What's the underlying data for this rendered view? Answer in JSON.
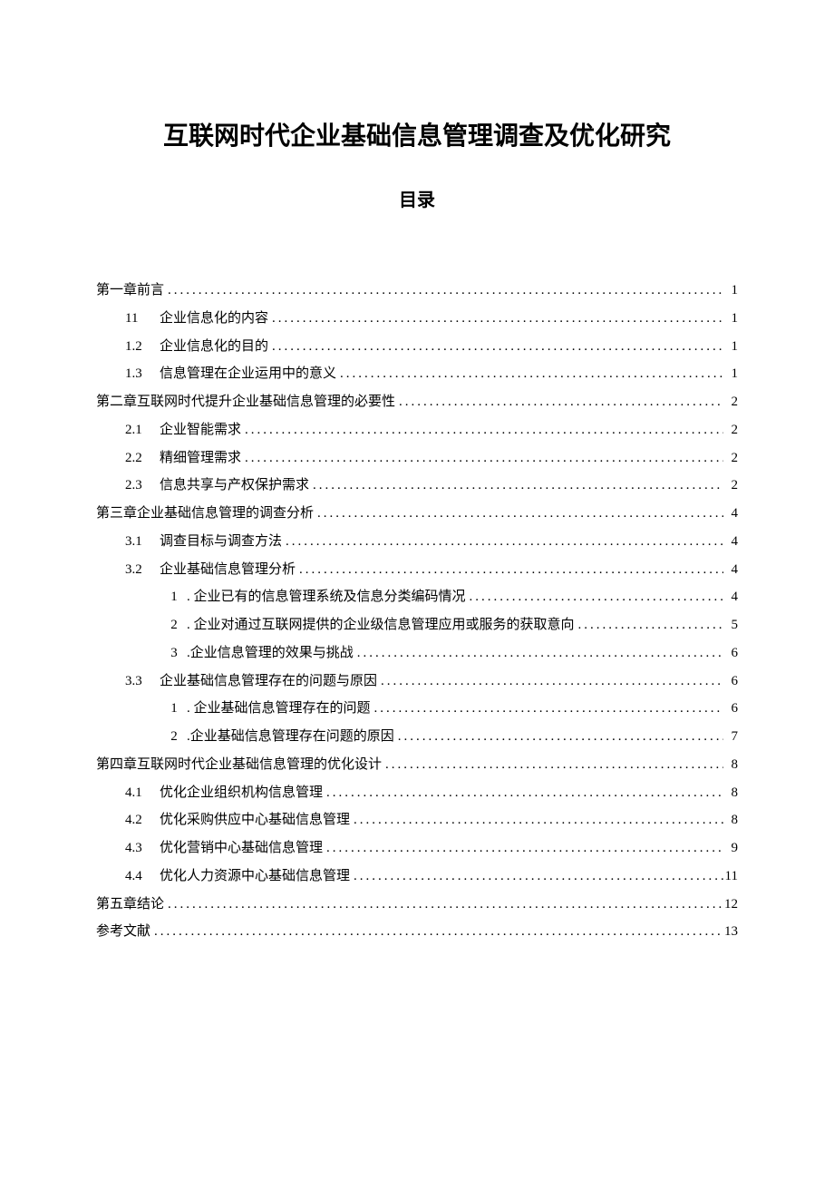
{
  "title": "互联网时代企业基础信息管理调查及优化研究",
  "subtitle": "目录",
  "toc": [
    {
      "level": 0,
      "num": "",
      "label": "第一章前言",
      "page": "1"
    },
    {
      "level": 1,
      "num": "11",
      "label": "企业信息化的内容",
      "page": "1"
    },
    {
      "level": 1,
      "num": "1.2",
      "label": "企业信息化的目的",
      "page": "1"
    },
    {
      "level": 1,
      "num": "1.3",
      "label": "信息管理在企业运用中的意义",
      "page": "1"
    },
    {
      "level": 0,
      "num": "",
      "label": "第二章互联网时代提升企业基础信息管理的必要性",
      "page": "2"
    },
    {
      "level": 1,
      "num": "2.1",
      "label": "企业智能需求",
      "page": "2"
    },
    {
      "level": 1,
      "num": "2.2",
      "label": "精细管理需求",
      "page": "2"
    },
    {
      "level": 1,
      "num": "2.3",
      "label": "信息共享与产权保护需求",
      "page": "2"
    },
    {
      "level": 0,
      "num": "",
      "label": "第三章企业基础信息管理的调查分析",
      "page": "4"
    },
    {
      "level": 1,
      "num": "3.1",
      "label": "调查目标与调查方法",
      "page": "4"
    },
    {
      "level": 1,
      "num": "3.2",
      "label": "企业基础信息管理分析",
      "page": "4"
    },
    {
      "level": 2,
      "num": "1",
      "label": ". 企业已有的信息管理系统及信息分类编码情况",
      "page": "4"
    },
    {
      "level": 2,
      "num": "2",
      "label": ". 企业对通过互联网提供的企业级信息管理应用或服务的获取意向",
      "page": "5"
    },
    {
      "level": 2,
      "num": "3",
      "label": ".企业信息管理的效果与挑战",
      "page": "6"
    },
    {
      "level": 1,
      "num": "3.3",
      "label": "企业基础信息管理存在的问题与原因",
      "page": "6"
    },
    {
      "level": 2,
      "num": "1",
      "label": ". 企业基础信息管理存在的问题",
      "page": "6"
    },
    {
      "level": 2,
      "num": "2",
      "label": ".企业基础信息管理存在问题的原因",
      "page": "7"
    },
    {
      "level": 0,
      "num": "",
      "label": "第四章互联网时代企业基础信息管理的优化设计",
      "page": "8"
    },
    {
      "level": 1,
      "num": "4.1",
      "label": "优化企业组织机构信息管理",
      "page": "8"
    },
    {
      "level": 1,
      "num": "4.2",
      "label": "优化采购供应中心基础信息管理",
      "page": "8"
    },
    {
      "level": 1,
      "num": "4.3",
      "label": "优化营销中心基础信息管理",
      "page": "9"
    },
    {
      "level": 1,
      "num": "4.4",
      "label": "优化人力资源中心基础信息管理",
      "page": "11"
    },
    {
      "level": 0,
      "num": "",
      "label": "第五章结论",
      "page": "12"
    },
    {
      "level": 0,
      "num": "",
      "label": "参考文献",
      "page": "13"
    }
  ]
}
